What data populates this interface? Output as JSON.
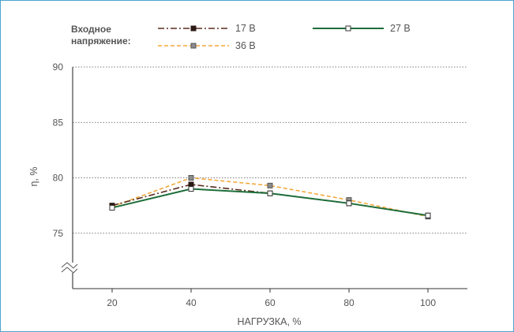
{
  "chart_data": {
    "type": "line",
    "legend": {
      "title_line1": "Входное",
      "title_line2": "напряжение:",
      "placement": "top"
    },
    "x": [
      20,
      40,
      60,
      80,
      100
    ],
    "xlabel": "НАГРУЗКА, %",
    "ylabel": "η, %",
    "ylim": [
      70,
      90
    ],
    "yticks": [
      75,
      80,
      85,
      90
    ],
    "xticks": [
      20,
      40,
      60,
      80,
      100
    ],
    "y_axis_break": true,
    "grid": "horizontal",
    "series": [
      {
        "name": "17 В",
        "values": [
          77.5,
          79.4,
          78.6,
          77.7,
          76.6
        ],
        "color": "#5a2d1e",
        "style": "dashdot",
        "marker": "filled-square"
      },
      {
        "name": "27 В",
        "values": [
          77.3,
          79.0,
          78.6,
          77.7,
          76.6
        ],
        "color": "#1e6e3a",
        "style": "solid",
        "marker": "open-square"
      },
      {
        "name": "36 В",
        "values": [
          77.4,
          80.0,
          79.3,
          78.0,
          76.5
        ],
        "color": "#f2a93b",
        "style": "dashed",
        "marker": "grey-square"
      }
    ]
  }
}
